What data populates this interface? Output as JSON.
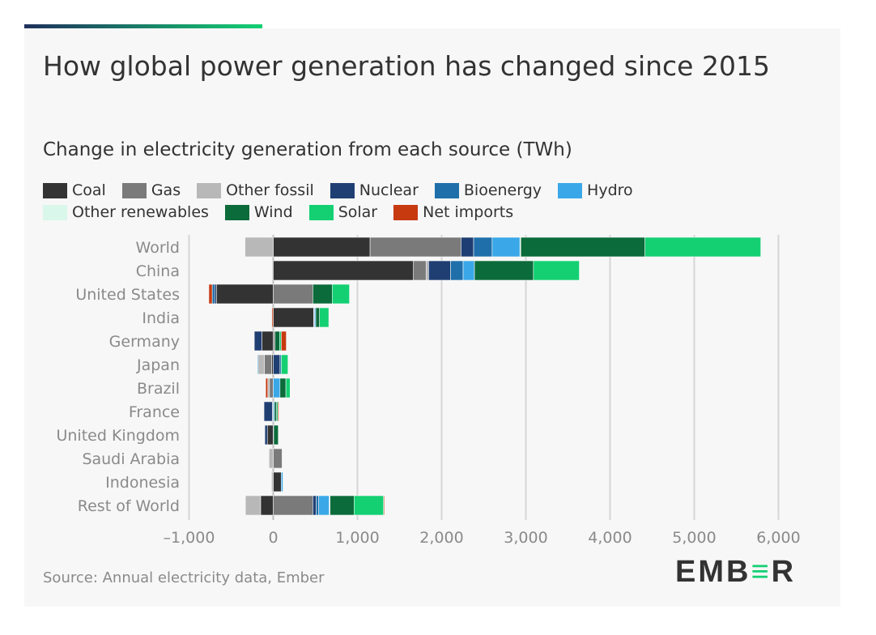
{
  "chart_data": {
    "type": "bar",
    "orientation": "horizontal",
    "stacked": true,
    "title": "How global power generation has changed since 2015",
    "subtitle": "Change in electricity generation from each source (TWh)",
    "source": "Source: Annual electricity data, Ember",
    "logo": "EMBER",
    "xlim": [
      -1000,
      6000
    ],
    "xticks": [
      -1000,
      0,
      1000,
      2000,
      3000,
      4000,
      5000,
      6000
    ],
    "xtick_labels": [
      "–1,000",
      "0",
      "1,000",
      "2,000",
      "3,000",
      "4,000",
      "5,000",
      "6,000"
    ],
    "grid": true,
    "legend_position": "top",
    "categories": [
      "World",
      "China",
      "United States",
      "India",
      "Germany",
      "Japan",
      "Brazil",
      "France",
      "United Kingdom",
      "Saudi Arabia",
      "Indonesia",
      "Rest of World"
    ],
    "series": [
      {
        "name": "Coal",
        "color": "#333333",
        "values": [
          1150,
          1665,
          -675,
          480,
          -135,
          -20,
          0,
          0,
          -70,
          0,
          95,
          -150
        ]
      },
      {
        "name": "Gas",
        "color": "#7a7a7a",
        "values": [
          1080,
          150,
          470,
          0,
          20,
          -85,
          -45,
          -10,
          0,
          105,
          0,
          470
        ]
      },
      {
        "name": "Other fossil",
        "color": "#b8b8b8",
        "values": [
          -335,
          30,
          0,
          0,
          0,
          -75,
          -20,
          0,
          0,
          -50,
          -20,
          -180
        ]
      },
      {
        "name": "Nuclear",
        "color": "#1f3f73",
        "values": [
          150,
          260,
          -20,
          5,
          -90,
          80,
          0,
          -100,
          -30,
          0,
          0,
          40
        ]
      },
      {
        "name": "Bioenergy",
        "color": "#1f6faa",
        "values": [
          220,
          150,
          -30,
          5,
          0,
          15,
          0,
          0,
          5,
          0,
          0,
          30
        ]
      },
      {
        "name": "Hydro",
        "color": "#3aa8e8",
        "values": [
          330,
          135,
          0,
          15,
          0,
          -10,
          80,
          15,
          0,
          0,
          20,
          125
        ]
      },
      {
        "name": "Other renewables",
        "color": "#d9f7ea",
        "values": [
          10,
          0,
          0,
          0,
          0,
          0,
          0,
          0,
          0,
          0,
          0,
          10
        ]
      },
      {
        "name": "Wind",
        "color": "#0b6b3a",
        "values": [
          1475,
          700,
          230,
          45,
          55,
          0,
          70,
          25,
          55,
          0,
          0,
          285
        ]
      },
      {
        "name": "Solar",
        "color": "#14d073",
        "values": [
          1375,
          545,
          205,
          110,
          20,
          80,
          50,
          15,
          0,
          0,
          0,
          350
        ]
      },
      {
        "name": "Net imports",
        "color": "#c73a10",
        "values": [
          0,
          0,
          -40,
          -15,
          60,
          0,
          -25,
          12,
          0,
          0,
          0,
          10
        ]
      }
    ]
  }
}
